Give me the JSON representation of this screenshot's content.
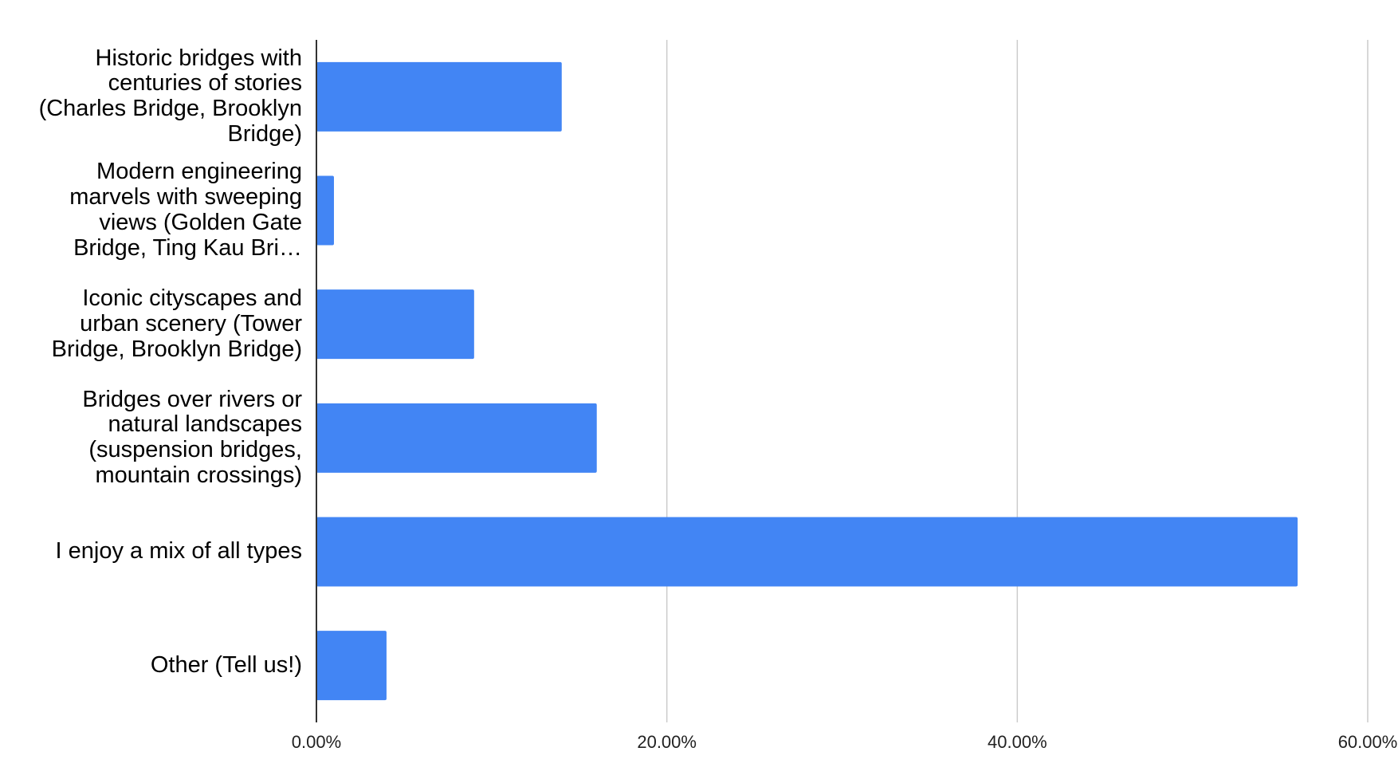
{
  "chart_data": {
    "type": "bar",
    "orientation": "horizontal",
    "categories": [
      "Historic bridges with centuries of stories (Charles Bridge, Brooklyn Bridge)",
      "Modern engineering marvels with sweeping views (Golden Gate Bridge, Ting Kau Bri…",
      "Iconic cityscapes and urban scenery (Tower Bridge, Brooklyn Bridge)",
      "Bridges over rivers or natural landscapes (suspension bridges, mountain crossings)",
      "I enjoy a mix of all types",
      "Other (Tell us!)"
    ],
    "values": [
      14,
      1,
      9,
      16,
      56,
      4
    ],
    "color": "#4285f4",
    "xlim": [
      0,
      60
    ],
    "xticks": [
      {
        "value": 0,
        "label": "0.00%"
      },
      {
        "value": 20,
        "label": "20.00%"
      },
      {
        "value": 40,
        "label": "40.00%"
      },
      {
        "value": 60,
        "label": "60.00%"
      }
    ],
    "grid": true
  }
}
